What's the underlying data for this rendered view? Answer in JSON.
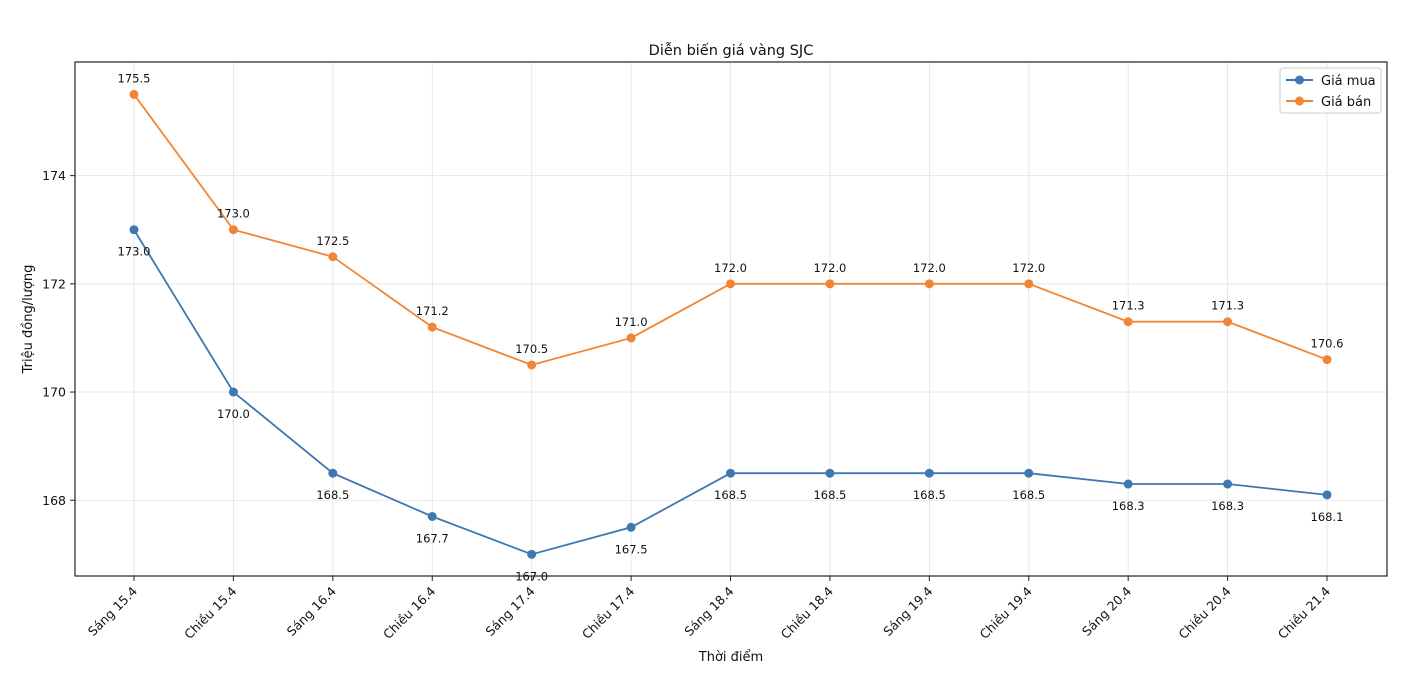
{
  "chart_data": {
    "type": "line",
    "title": "Diễn biến giá vàng SJC",
    "xlabel": "Thời điểm",
    "ylabel": "Triệu đồng/lượng",
    "categories": [
      "Sáng 15.4",
      "Chiều 15.4",
      "Sáng 16.4",
      "Chiều 16.4",
      "Sáng 17.4",
      "Chiều 17.4",
      "Sáng 18.4",
      "Chiều 18.4",
      "Sáng 19.4",
      "Chiều 19.4",
      "Sáng 20.4",
      "Chiều 20.4",
      "Chiều 21.4"
    ],
    "ylim": [
      166.6,
      176.1
    ],
    "yticks": [
      168,
      170,
      172,
      174
    ],
    "grid": true,
    "legend_position": "top-right",
    "series": [
      {
        "name": "Giá mua",
        "color": "#3f78b0",
        "values": [
          173.0,
          170.0,
          168.5,
          167.7,
          167.0,
          167.5,
          168.5,
          168.5,
          168.5,
          168.5,
          168.3,
          168.3,
          168.1
        ],
        "labels": [
          "173.0",
          "170.0",
          "168.5",
          "167.7",
          "167.0",
          "167.5",
          "168.5",
          "168.5",
          "168.5",
          "168.5",
          "168.3",
          "168.3",
          "168.1"
        ],
        "label_position": "below"
      },
      {
        "name": "Giá bán",
        "color": "#ef8636",
        "values": [
          175.5,
          173.0,
          172.5,
          171.2,
          170.5,
          171.0,
          172.0,
          172.0,
          172.0,
          172.0,
          171.3,
          171.3,
          170.6
        ],
        "labels": [
          "175.5",
          "173.0",
          "172.5",
          "171.2",
          "170.5",
          "171.0",
          "172.0",
          "172.0",
          "172.0",
          "172.0",
          "171.3",
          "171.3",
          "170.6"
        ],
        "label_position": "above"
      }
    ]
  }
}
